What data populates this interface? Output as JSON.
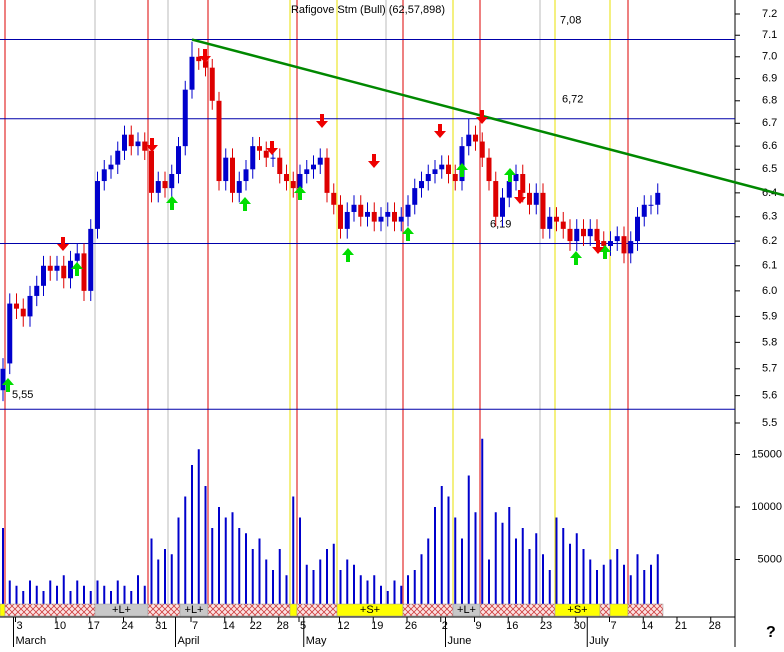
{
  "chart_data": {
    "type": "candlestick",
    "title": "Rafigove Stm (Bull) (62,57,898)",
    "categories": [
      null,
      null,
      "3",
      null,
      null,
      null,
      null,
      null,
      "10",
      null,
      null,
      null,
      null,
      "17",
      null,
      null,
      null,
      null,
      "24",
      null,
      null,
      null,
      null,
      "31",
      null,
      null,
      null,
      null,
      "7",
      null,
      null,
      null,
      null,
      "14",
      null,
      null,
      null,
      "22",
      null,
      null,
      null,
      "28",
      null,
      null,
      "5",
      null,
      null,
      null,
      null,
      null,
      "12",
      null,
      null,
      null,
      null,
      "19",
      null,
      null,
      null,
      null,
      "26",
      null,
      null,
      null,
      null,
      "2",
      null,
      null,
      null,
      null,
      "9",
      null,
      null,
      null,
      null,
      "16",
      null,
      null,
      null,
      null,
      "23",
      null,
      null,
      null,
      null,
      "30",
      null,
      null,
      null,
      null,
      "7",
      null,
      null,
      null,
      null,
      "14",
      null,
      null,
      null,
      null,
      "21",
      null,
      null,
      null,
      null,
      "28",
      null,
      null
    ],
    "months": [
      null,
      null,
      "March",
      null,
      null,
      null,
      null,
      null,
      null,
      null,
      null,
      null,
      null,
      null,
      null,
      null,
      null,
      null,
      null,
      null,
      null,
      null,
      null,
      null,
      null,
      null,
      "April",
      null,
      null,
      null,
      null,
      null,
      null,
      null,
      null,
      null,
      null,
      null,
      null,
      null,
      null,
      null,
      null,
      null,
      null,
      "May",
      null,
      null,
      null,
      null,
      null,
      null,
      null,
      null,
      null,
      null,
      null,
      null,
      null,
      null,
      null,
      null,
      null,
      null,
      null,
      null,
      "June",
      null,
      null,
      null,
      null,
      null,
      null,
      null,
      null,
      null,
      null,
      null,
      null,
      null,
      null,
      null,
      null,
      null,
      null,
      null,
      null,
      "July",
      null,
      null,
      null,
      null,
      null,
      null,
      null,
      null,
      null,
      null,
      null,
      null,
      null,
      null,
      null,
      null,
      null,
      null,
      null,
      null
    ],
    "open": [
      5.62,
      5.72,
      5.95,
      5.93,
      5.9,
      5.98,
      6.02,
      6.1,
      6.08,
      6.1,
      6.05,
      6.12,
      6.15,
      6.0,
      6.25,
      6.45,
      6.5,
      6.52,
      6.58,
      6.65,
      6.6,
      6.62,
      6.58,
      6.4,
      6.45,
      6.42,
      6.48,
      6.6,
      6.85,
      7.0,
      6.98,
      6.95,
      6.8,
      6.45,
      6.55,
      6.4,
      6.45,
      6.5,
      6.6,
      6.58,
      6.55,
      6.55,
      6.48,
      6.45,
      6.42,
      6.48,
      6.5,
      6.52,
      6.55,
      6.4,
      6.35,
      6.25,
      6.32,
      6.35,
      6.3,
      6.32,
      6.28,
      6.3,
      6.32,
      6.28,
      6.3,
      6.35,
      6.42,
      6.45,
      6.48,
      6.5,
      6.52,
      6.48,
      6.45,
      6.6,
      6.65,
      6.62,
      6.55,
      6.45,
      6.3,
      6.38,
      6.45,
      6.48,
      6.4,
      6.35,
      6.4,
      6.25,
      6.3,
      6.28,
      6.25,
      6.2,
      6.25,
      6.22,
      6.25,
      6.2,
      6.18,
      6.2,
      6.22,
      6.15,
      6.2,
      6.3,
      6.35,
      6.35,
      null,
      null,
      null,
      null,
      null,
      null,
      null,
      null,
      null,
      null
    ],
    "high": [
      5.74,
      5.99,
      5.99,
      5.97,
      6.02,
      6.06,
      6.14,
      6.14,
      6.14,
      6.14,
      6.16,
      6.19,
      6.19,
      6.29,
      6.49,
      6.54,
      6.56,
      6.62,
      6.69,
      6.69,
      6.66,
      6.66,
      6.62,
      6.49,
      6.49,
      6.52,
      6.64,
      6.89,
      7.07,
      7.04,
      7.02,
      6.99,
      6.84,
      6.59,
      6.59,
      6.49,
      6.54,
      6.64,
      6.64,
      6.62,
      6.59,
      6.59,
      6.52,
      6.49,
      6.52,
      6.54,
      6.56,
      6.59,
      6.59,
      6.44,
      6.39,
      6.36,
      6.39,
      6.39,
      6.36,
      6.36,
      6.34,
      6.36,
      6.36,
      6.34,
      6.39,
      6.46,
      6.49,
      6.52,
      6.54,
      6.56,
      6.56,
      6.52,
      6.64,
      6.72,
      6.69,
      6.66,
      6.59,
      6.49,
      6.42,
      6.49,
      6.52,
      6.52,
      6.44,
      6.44,
      6.44,
      6.34,
      6.34,
      6.32,
      6.29,
      6.29,
      6.29,
      6.29,
      6.29,
      6.24,
      6.24,
      6.26,
      6.26,
      6.24,
      6.34,
      6.39,
      6.39,
      6.44,
      null,
      null,
      null,
      null,
      null,
      null,
      null,
      null,
      null,
      null
    ],
    "low": [
      5.58,
      5.68,
      5.89,
      5.86,
      5.86,
      5.94,
      5.98,
      6.04,
      6.04,
      6.01,
      6.01,
      6.08,
      5.96,
      5.96,
      6.21,
      6.41,
      6.46,
      6.48,
      6.54,
      6.56,
      6.56,
      6.54,
      6.36,
      6.36,
      6.38,
      6.38,
      6.44,
      6.56,
      6.81,
      6.94,
      6.91,
      6.76,
      6.41,
      6.41,
      6.36,
      6.36,
      6.41,
      6.46,
      6.54,
      6.51,
      6.51,
      6.44,
      6.41,
      6.38,
      6.38,
      6.44,
      6.46,
      6.48,
      6.36,
      6.31,
      6.21,
      6.21,
      6.28,
      6.26,
      6.26,
      6.24,
      6.24,
      6.26,
      6.24,
      6.24,
      6.26,
      6.31,
      6.38,
      6.41,
      6.44,
      6.46,
      6.44,
      6.41,
      6.41,
      6.56,
      6.58,
      6.51,
      6.41,
      6.26,
      6.26,
      6.34,
      6.41,
      6.36,
      6.31,
      6.31,
      6.21,
      6.21,
      6.24,
      6.21,
      6.16,
      6.16,
      6.18,
      6.18,
      6.16,
      6.14,
      6.14,
      6.16,
      6.11,
      6.11,
      6.16,
      6.26,
      6.31,
      6.31,
      null,
      null,
      null,
      null,
      null,
      null,
      null,
      null,
      null,
      null
    ],
    "close": [
      5.7,
      5.95,
      5.93,
      5.9,
      5.98,
      6.02,
      6.1,
      6.08,
      6.1,
      6.05,
      6.12,
      6.15,
      6.0,
      6.25,
      6.45,
      6.5,
      6.52,
      6.58,
      6.65,
      6.6,
      6.62,
      6.58,
      6.4,
      6.45,
      6.42,
      6.48,
      6.6,
      6.85,
      7.0,
      6.98,
      6.95,
      6.8,
      6.45,
      6.55,
      6.4,
      6.45,
      6.5,
      6.6,
      6.58,
      6.55,
      6.55,
      6.48,
      6.45,
      6.42,
      6.48,
      6.5,
      6.52,
      6.55,
      6.4,
      6.35,
      6.25,
      6.32,
      6.35,
      6.3,
      6.32,
      6.28,
      6.3,
      6.32,
      6.28,
      6.3,
      6.35,
      6.42,
      6.45,
      6.48,
      6.5,
      6.52,
      6.48,
      6.45,
      6.6,
      6.65,
      6.62,
      6.55,
      6.45,
      6.3,
      6.38,
      6.45,
      6.48,
      6.4,
      6.35,
      6.4,
      6.25,
      6.3,
      6.28,
      6.25,
      6.2,
      6.25,
      6.22,
      6.25,
      6.2,
      6.18,
      6.2,
      6.22,
      6.15,
      6.2,
      6.3,
      6.35,
      6.35,
      6.4,
      null,
      null,
      null,
      null,
      null,
      null,
      null,
      null,
      null,
      null
    ],
    "volume": [
      8000,
      3000,
      2500,
      2000,
      3000,
      2500,
      2000,
      3000,
      2500,
      3500,
      2000,
      3000,
      2500,
      2000,
      3000,
      2500,
      2000,
      3000,
      2500,
      2000,
      3500,
      2500,
      7000,
      5000,
      6000,
      5500,
      9000,
      11000,
      14000,
      15500,
      12000,
      8000,
      10000,
      9000,
      9500,
      8000,
      7500,
      6000,
      7000,
      5000,
      4000,
      6000,
      3500,
      11000,
      9000,
      4500,
      4000,
      5000,
      6000,
      6500,
      4000,
      5000,
      4500,
      3500,
      3000,
      3500,
      2500,
      2000,
      3000,
      2500,
      3500,
      4000,
      5500,
      7000,
      10000,
      12000,
      11000,
      9000,
      7000,
      13000,
      9500,
      16500,
      5000,
      9500,
      8500,
      10000,
      7000,
      8000,
      6000,
      7500,
      5500,
      4000,
      9000,
      8000,
      6500,
      7500,
      6000,
      5000,
      4000,
      4500,
      5000,
      6000,
      4500,
      3500,
      5500,
      4000,
      4500,
      5500,
      null,
      null,
      null,
      null,
      null,
      null,
      null,
      null,
      null,
      null
    ],
    "up_color": "#0000cc",
    "down_color": "#dd0000",
    "volume_color": "#0000cc",
    "log_scale": true,
    "ylim": [
      5.5,
      7.2
    ],
    "yticks": [
      5.5,
      5.6,
      5.7,
      5.8,
      5.9,
      {
        "value": 6,
        "label": "6.0"
      },
      6.1,
      6.2,
      6.3,
      6.4,
      6.5,
      6.6,
      6.7,
      6.8,
      6.9,
      {
        "value": 7,
        "label": "7.0"
      },
      7.1,
      7.2
    ],
    "volume_ylim": [
      0,
      18000
    ],
    "volume_yticks": [
      5000,
      10000,
      15000
    ],
    "levels": [
      {
        "value": 7.08,
        "label": "7,08"
      },
      {
        "value": 6.72,
        "label": "6,72"
      },
      {
        "value": 6.19,
        "label": "6,19"
      },
      {
        "value": 5.55,
        "label": "5,55"
      }
    ],
    "level_color": "#0000aa",
    "trendline": {
      "start": 7.08,
      "end": 6.39,
      "color": "#008800"
    },
    "signals": [
      "+L+",
      "+L+",
      "+S+",
      "+L+",
      "+S+"
    ],
    "help": "?"
  }
}
